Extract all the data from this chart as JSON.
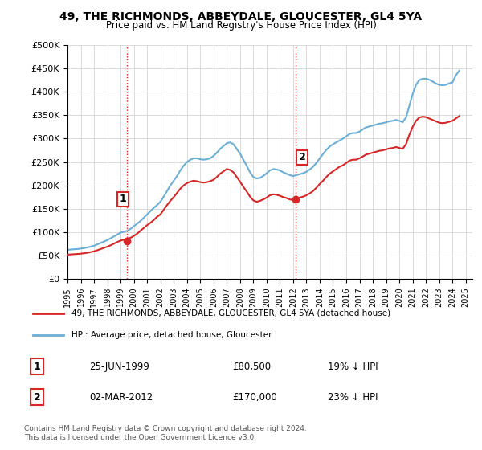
{
  "title": "49, THE RICHMONDS, ABBEYDALE, GLOUCESTER, GL4 5YA",
  "subtitle": "Price paid vs. HM Land Registry's House Price Index (HPI)",
  "legend_line1": "49, THE RICHMONDS, ABBEYDALE, GLOUCESTER, GL4 5YA (detached house)",
  "legend_line2": "HPI: Average price, detached house, Gloucester",
  "transaction1_label": "1",
  "transaction1_date": "25-JUN-1999",
  "transaction1_price": "£80,500",
  "transaction1_hpi": "19% ↓ HPI",
  "transaction2_label": "2",
  "transaction2_date": "02-MAR-2012",
  "transaction2_price": "£170,000",
  "transaction2_hpi": "23% ↓ HPI",
  "footer": "Contains HM Land Registry data © Crown copyright and database right 2024.\nThis data is licensed under the Open Government Licence v3.0.",
  "hpi_color": "#6baed6",
  "price_color": "#d62728",
  "vline_color": "#d62728",
  "vline_style": ":",
  "marker1_x": 1999.49,
  "marker1_y": 80500,
  "marker2_x": 2012.17,
  "marker2_y": 170000,
  "ylim": [
    0,
    500000
  ],
  "xlim_start": 1995.0,
  "xlim_end": 2025.5,
  "yticks": [
    0,
    50000,
    100000,
    150000,
    200000,
    250000,
    300000,
    350000,
    400000,
    450000,
    500000
  ],
  "ytick_labels": [
    "£0",
    "£50K",
    "£100K",
    "£150K",
    "£200K",
    "£250K",
    "£300K",
    "£350K",
    "£400K",
    "£450K",
    "£500K"
  ],
  "background_color": "#ffffff",
  "grid_color": "#cccccc",
  "hpi_data_x": [
    1995.0,
    1995.25,
    1995.5,
    1995.75,
    1996.0,
    1996.25,
    1996.5,
    1996.75,
    1997.0,
    1997.25,
    1997.5,
    1997.75,
    1998.0,
    1998.25,
    1998.5,
    1998.75,
    1999.0,
    1999.25,
    1999.5,
    1999.75,
    2000.0,
    2000.25,
    2000.5,
    2000.75,
    2001.0,
    2001.25,
    2001.5,
    2001.75,
    2002.0,
    2002.25,
    2002.5,
    2002.75,
    2003.0,
    2003.25,
    2003.5,
    2003.75,
    2004.0,
    2004.25,
    2004.5,
    2004.75,
    2005.0,
    2005.25,
    2005.5,
    2005.75,
    2006.0,
    2006.25,
    2006.5,
    2006.75,
    2007.0,
    2007.25,
    2007.5,
    2007.75,
    2008.0,
    2008.25,
    2008.5,
    2008.75,
    2009.0,
    2009.25,
    2009.5,
    2009.75,
    2010.0,
    2010.25,
    2010.5,
    2010.75,
    2011.0,
    2011.25,
    2011.5,
    2011.75,
    2012.0,
    2012.25,
    2012.5,
    2012.75,
    2013.0,
    2013.25,
    2013.5,
    2013.75,
    2014.0,
    2014.25,
    2014.5,
    2014.75,
    2015.0,
    2015.25,
    2015.5,
    2015.75,
    2016.0,
    2016.25,
    2016.5,
    2016.75,
    2017.0,
    2017.25,
    2017.5,
    2017.75,
    2018.0,
    2018.25,
    2018.5,
    2018.75,
    2019.0,
    2019.25,
    2019.5,
    2019.75,
    2020.0,
    2020.25,
    2020.5,
    2020.75,
    2021.0,
    2021.25,
    2021.5,
    2021.75,
    2022.0,
    2022.25,
    2022.5,
    2022.75,
    2023.0,
    2023.25,
    2023.5,
    2023.75,
    2024.0,
    2024.25,
    2024.5
  ],
  "hpi_data_y": [
    62000,
    63000,
    63500,
    64000,
    65000,
    66000,
    67500,
    69000,
    71000,
    74000,
    77000,
    80000,
    83000,
    87000,
    91000,
    95000,
    99000,
    101000,
    103000,
    107000,
    113000,
    118000,
    124000,
    131000,
    138000,
    145000,
    152000,
    158000,
    165000,
    176000,
    188000,
    200000,
    210000,
    220000,
    232000,
    242000,
    250000,
    255000,
    258000,
    258000,
    256000,
    255000,
    256000,
    258000,
    263000,
    270000,
    278000,
    284000,
    290000,
    292000,
    288000,
    278000,
    268000,
    255000,
    242000,
    228000,
    218000,
    215000,
    216000,
    220000,
    226000,
    232000,
    235000,
    234000,
    232000,
    228000,
    225000,
    222000,
    220000,
    222000,
    224000,
    226000,
    229000,
    234000,
    240000,
    248000,
    258000,
    267000,
    276000,
    283000,
    288000,
    292000,
    296000,
    300000,
    305000,
    310000,
    312000,
    312000,
    315000,
    320000,
    324000,
    326000,
    328000,
    330000,
    332000,
    333000,
    335000,
    337000,
    338000,
    340000,
    338000,
    335000,
    345000,
    370000,
    395000,
    415000,
    425000,
    428000,
    428000,
    426000,
    422000,
    418000,
    415000,
    414000,
    415000,
    418000,
    420000,
    435000,
    445000
  ],
  "price_data_x": [
    1995.0,
    1995.25,
    1995.5,
    1995.75,
    1996.0,
    1996.25,
    1996.5,
    1996.75,
    1997.0,
    1997.25,
    1997.5,
    1997.75,
    1998.0,
    1998.25,
    1998.5,
    1998.75,
    1999.0,
    1999.25,
    1999.5,
    1999.75,
    2000.0,
    2000.25,
    2000.5,
    2000.75,
    2001.0,
    2001.25,
    2001.5,
    2001.75,
    2002.0,
    2002.25,
    2002.5,
    2002.75,
    2003.0,
    2003.25,
    2003.5,
    2003.75,
    2004.0,
    2004.25,
    2004.5,
    2004.75,
    2005.0,
    2005.25,
    2005.5,
    2005.75,
    2006.0,
    2006.25,
    2006.5,
    2006.75,
    2007.0,
    2007.25,
    2007.5,
    2007.75,
    2008.0,
    2008.25,
    2008.5,
    2008.75,
    2009.0,
    2009.25,
    2009.5,
    2009.75,
    2010.0,
    2010.25,
    2010.5,
    2010.75,
    2011.0,
    2011.25,
    2011.5,
    2011.75,
    2012.0,
    2012.25,
    2012.5,
    2012.75,
    2013.0,
    2013.25,
    2013.5,
    2013.75,
    2014.0,
    2014.25,
    2014.5,
    2014.75,
    2015.0,
    2015.25,
    2015.5,
    2015.75,
    2016.0,
    2016.25,
    2016.5,
    2016.75,
    2017.0,
    2017.25,
    2017.5,
    2017.75,
    2018.0,
    2018.25,
    2018.5,
    2018.75,
    2019.0,
    2019.25,
    2019.5,
    2019.75,
    2020.0,
    2020.25,
    2020.5,
    2020.75,
    2021.0,
    2021.25,
    2021.5,
    2021.75,
    2022.0,
    2022.25,
    2022.5,
    2022.75,
    2023.0,
    2023.25,
    2023.5,
    2023.75,
    2024.0,
    2024.25,
    2024.5
  ],
  "price_data_y": [
    52000,
    52500,
    53000,
    53500,
    54000,
    55000,
    56000,
    57500,
    59000,
    61500,
    64000,
    66500,
    69000,
    72000,
    75500,
    79000,
    82000,
    84000,
    86000,
    88000,
    92000,
    97000,
    103000,
    109000,
    115000,
    120000,
    126000,
    133000,
    138000,
    148000,
    158000,
    167000,
    175000,
    184000,
    193000,
    200000,
    205000,
    208000,
    210000,
    209000,
    207000,
    206000,
    207000,
    209000,
    212000,
    218000,
    225000,
    230000,
    235000,
    233000,
    228000,
    218000,
    208000,
    197000,
    187000,
    176000,
    168000,
    165000,
    167000,
    170000,
    174000,
    179000,
    181000,
    180000,
    178000,
    175000,
    173000,
    170000,
    169000,
    171000,
    174000,
    176000,
    179000,
    183000,
    188000,
    195000,
    203000,
    210000,
    218000,
    225000,
    230000,
    235000,
    240000,
    243000,
    248000,
    253000,
    255000,
    255000,
    258000,
    262000,
    266000,
    268000,
    270000,
    272000,
    274000,
    275000,
    277000,
    279000,
    280000,
    282000,
    280000,
    278000,
    288000,
    308000,
    325000,
    338000,
    345000,
    347000,
    346000,
    343000,
    340000,
    337000,
    334000,
    333000,
    334000,
    336000,
    338000,
    343000,
    348000
  ]
}
